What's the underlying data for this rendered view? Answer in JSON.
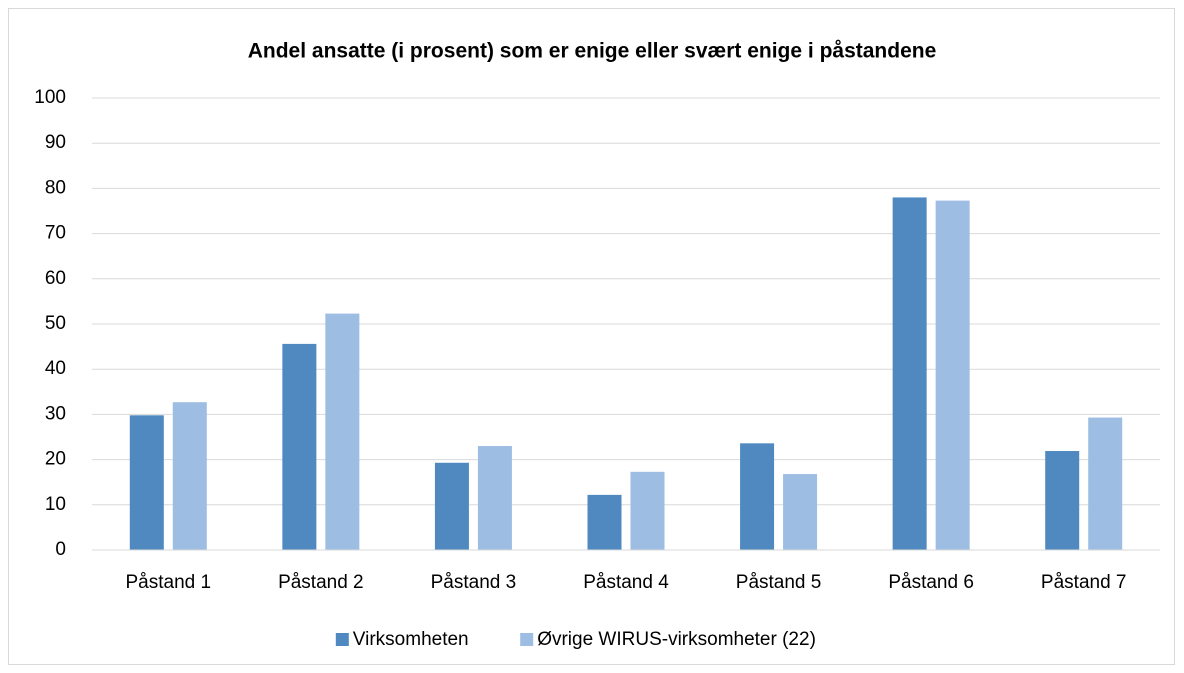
{
  "chart_data": {
    "type": "bar",
    "title": "Andel ansatte (i prosent) som er enige eller svært enige i påstandene",
    "categories": [
      "Påstand 1",
      "Påstand 2",
      "Påstand 3",
      "Påstand 4",
      "Påstand 5",
      "Påstand 6",
      "Påstand 7"
    ],
    "series": [
      {
        "name": "Virksomheten",
        "color": "#4f89c0",
        "values": [
          29.8,
          45.6,
          19.3,
          12.2,
          23.6,
          78.0,
          21.9
        ]
      },
      {
        "name": "Øvrige WIRUS-virksomheter (22)",
        "color": "#9dbde3",
        "values": [
          32.7,
          52.3,
          23.0,
          17.3,
          16.8,
          77.3,
          29.3
        ]
      }
    ],
    "ylim": [
      0,
      100
    ],
    "yticks": [
      0,
      10,
      20,
      30,
      40,
      50,
      60,
      70,
      80,
      90,
      100
    ],
    "grid": true,
    "legend": "bottom"
  }
}
